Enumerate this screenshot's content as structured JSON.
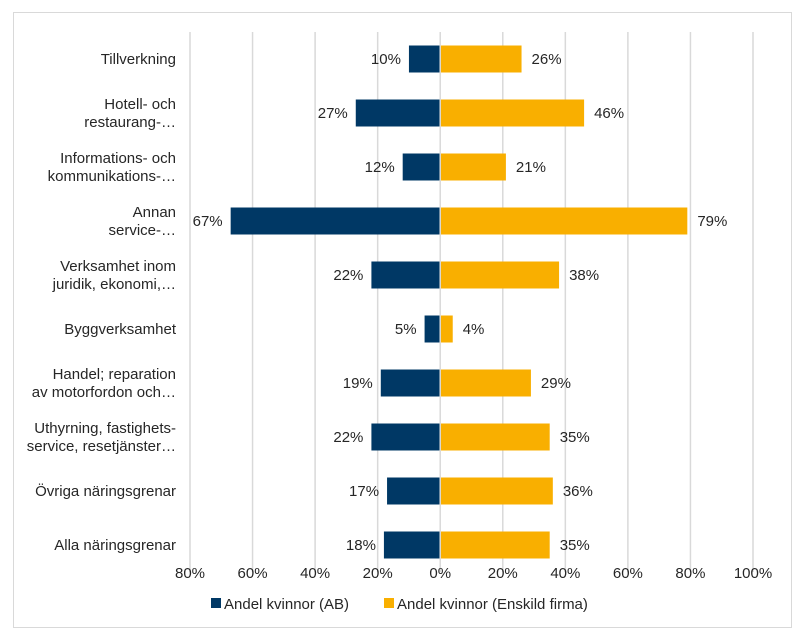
{
  "chart_data": {
    "type": "bar",
    "orientation": "horizontal-diverging",
    "title": "",
    "xlabel": "",
    "ylabel": "",
    "categories": [
      [
        "Tillverkning"
      ],
      [
        "Hotell- och",
        "restaurang-…"
      ],
      [
        "Informations- och",
        "kommunikations-…"
      ],
      [
        "Annan",
        "service-…"
      ],
      [
        "Verksamhet inom",
        "juridik, ekonomi,…"
      ],
      [
        "Byggverksamhet"
      ],
      [
        "Handel; reparation",
        "av motorfordon och…"
      ],
      [
        "Uthyrning, fastighets-",
        "service, resetjänster…"
      ],
      [
        "Övriga näringsgrenar"
      ],
      [
        "Alla näringsgrenar"
      ]
    ],
    "series": [
      {
        "name": "Andel kvinnor (AB)",
        "color": "#003865",
        "direction": "left",
        "values": [
          10,
          27,
          12,
          67,
          22,
          5,
          19,
          22,
          17,
          18
        ],
        "labels": [
          "10%",
          "27%",
          "12%",
          "67%",
          "22%",
          "5%",
          "19%",
          "22%",
          "17%",
          "18%"
        ]
      },
      {
        "name": "Andel kvinnor (Enskild firma)",
        "color": "#F9AF00",
        "direction": "right",
        "values": [
          26,
          46,
          21,
          79,
          38,
          4,
          29,
          35,
          36,
          35
        ],
        "labels": [
          "26%",
          "46%",
          "21%",
          "79%",
          "38%",
          "4%",
          "29%",
          "35%",
          "36%",
          "35%"
        ]
      }
    ],
    "xlim": [
      -80,
      100
    ],
    "xticks": [
      -80,
      -60,
      -40,
      -20,
      0,
      20,
      40,
      60,
      80,
      100
    ],
    "xtick_labels": [
      "80%",
      "60%",
      "40%",
      "20%",
      "0%",
      "20%",
      "40%",
      "60%",
      "80%",
      "100%"
    ],
    "grid": "vertical",
    "legend_position": "bottom"
  }
}
